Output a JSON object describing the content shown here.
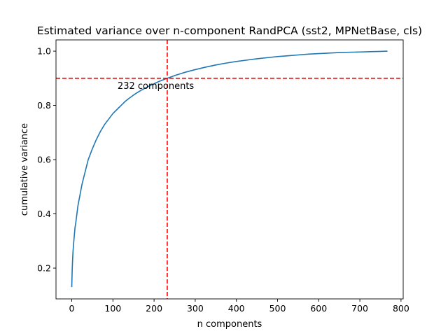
{
  "chart_data": {
    "type": "line",
    "title": "Estimated variance over n-component RandPCA (sst2, MPNetBase, cls)",
    "xlabel": "n components",
    "ylabel": "cumulative variance",
    "xlim": [
      -38.3,
      805.3
    ],
    "ylim": [
      0.0865,
      1.0415
    ],
    "xticks": [
      0,
      100,
      200,
      300,
      400,
      500,
      600,
      700,
      800
    ],
    "yticks": [
      0.2,
      0.4,
      0.6,
      0.8,
      1.0
    ],
    "xtick_labels": [
      "0",
      "100",
      "200",
      "300",
      "400",
      "500",
      "600",
      "700",
      "800"
    ],
    "ytick_labels": [
      "0.2",
      "0.4",
      "0.6",
      "0.8",
      "1.0"
    ],
    "grid": false,
    "series": [
      {
        "color": "#1f77b4",
        "x": [
          0,
          1,
          2,
          3,
          5,
          8,
          10,
          15,
          20,
          25,
          30,
          40,
          50,
          60,
          70,
          80,
          90,
          100,
          110,
          120,
          130,
          140,
          150,
          160,
          170,
          180,
          190,
          200,
          210,
          220,
          232,
          250,
          275,
          300,
          325,
          350,
          375,
          400,
          425,
          450,
          475,
          500,
          525,
          550,
          575,
          600,
          625,
          650,
          675,
          700,
          725,
          750,
          767
        ],
        "y": [
          0.13,
          0.19,
          0.23,
          0.26,
          0.3,
          0.35,
          0.37,
          0.43,
          0.47,
          0.51,
          0.54,
          0.6,
          0.64,
          0.675,
          0.705,
          0.73,
          0.75,
          0.77,
          0.785,
          0.8,
          0.815,
          0.827,
          0.838,
          0.848,
          0.857,
          0.865,
          0.873,
          0.88,
          0.887,
          0.893,
          0.9,
          0.91,
          0.922,
          0.932,
          0.941,
          0.949,
          0.956,
          0.962,
          0.967,
          0.972,
          0.976,
          0.98,
          0.983,
          0.986,
          0.989,
          0.991,
          0.993,
          0.995,
          0.996,
          0.997,
          0.998,
          0.999,
          1.0
        ]
      }
    ],
    "reference_lines": [
      {
        "orientation": "horizontal",
        "value": 0.9,
        "color": "#ff0000",
        "style": "dashed"
      },
      {
        "orientation": "vertical",
        "value": 232,
        "color": "#ff0000",
        "style": "dashed"
      }
    ],
    "annotations": [
      {
        "text": "232 components",
        "x": 232,
        "y": 0.9
      }
    ]
  }
}
